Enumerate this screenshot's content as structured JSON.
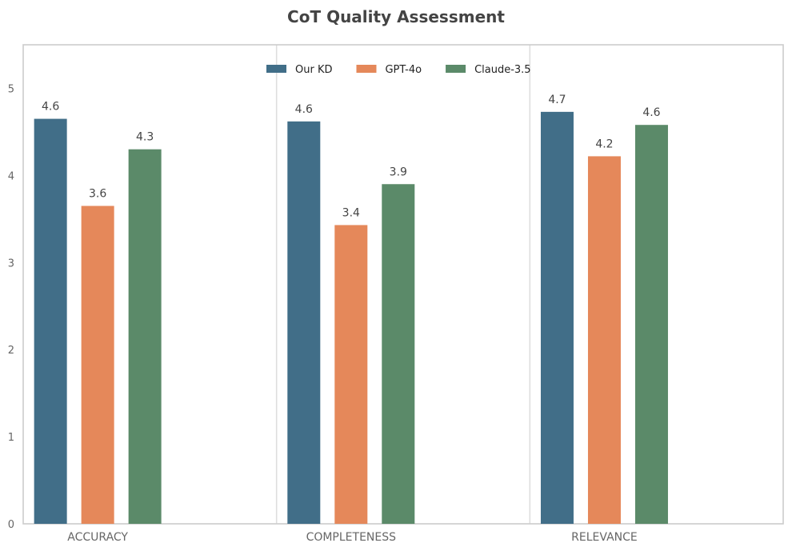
{
  "chart_data": {
    "type": "bar",
    "title": "CoT Quality Assessment",
    "xlabel": "",
    "ylabel": "",
    "categories": [
      "ACCURACY",
      "COMPLETENESS",
      "RELEVANCE"
    ],
    "series": [
      {
        "name": "Our KD",
        "color": "#416e88",
        "values": [
          4.65,
          4.62,
          4.73
        ],
        "labels": [
          "4.6",
          "4.6",
          "4.7"
        ]
      },
      {
        "name": "GPT-4o",
        "color": "#e5885a",
        "values": [
          3.65,
          3.43,
          4.22
        ],
        "labels": [
          "3.6",
          "3.4",
          "4.2"
        ]
      },
      {
        "name": "Claude-3.5",
        "color": "#5b8a69",
        "values": [
          4.3,
          3.9,
          4.58
        ],
        "labels": [
          "4.3",
          "3.9",
          "4.6"
        ]
      }
    ],
    "ylim": [
      0,
      5.5
    ],
    "yticks": [
      0,
      1,
      2,
      3,
      4,
      5
    ],
    "grid": "vertical separators",
    "legend_position": "top-center"
  }
}
